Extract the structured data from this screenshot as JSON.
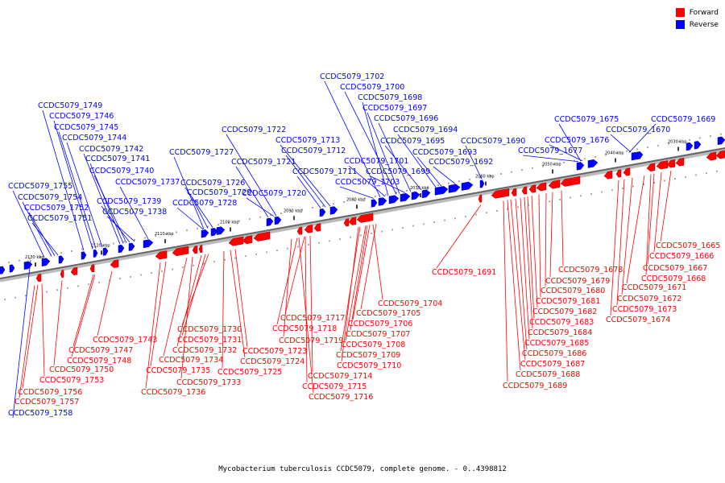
{
  "legend": {
    "forward": {
      "label": "Forward",
      "color": "#ff0000"
    },
    "reverse": {
      "label": "Reverse",
      "color": "#0000ff"
    }
  },
  "caption": "Mycobacterium tuberculosis CCDC5079, complete genome. - 0..4398812",
  "ticks": [
    "2030 kbp",
    "2040 kbp",
    "2050 kbp",
    "2060 kbp",
    "2070 kbp",
    "2080 kbp",
    "2090 kbp",
    "2100 kbp",
    "2110 kbp",
    "2120 kbp",
    "2130 kbp"
  ],
  "reverse_genes": [
    "CCDC5079_1669",
    "CCDC5079_1670",
    "CCDC5079_1675",
    "CCDC5079_1676",
    "CCDC5079_1677",
    "CCDC5079_1690",
    "CCDC5079_1692",
    "CCDC5079_1693",
    "CCDC5079_1694",
    "CCDC5079_1695",
    "CCDC5079_1696",
    "CCDC5079_1697",
    "CCDC5079_1698",
    "CCDC5079_1699",
    "CCDC5079_1700",
    "CCDC5079_1701",
    "CCDC5079_1702",
    "CCDC5079_1703",
    "CCDC5079_1711",
    "CCDC5079_1712",
    "CCDC5079_1713",
    "CCDC5079_1720",
    "CCDC5079_1721",
    "CCDC5079_1722",
    "CCDC5079_1726",
    "CCDC5079_1727",
    "CCDC5079_1728",
    "CCDC5079_1729",
    "CCDC5079_1737",
    "CCDC5079_1738",
    "CCDC5079_1739",
    "CCDC5079_1740",
    "CCDC5079_1741",
    "CCDC5079_1742",
    "CCDC5079_1744",
    "CCDC5079_1745",
    "CCDC5079_1746",
    "CCDC5079_1749",
    "CCDC5079_1751",
    "CCDC5079_1752",
    "CCDC5079_1754",
    "CCDC5079_1755",
    "CCDC5079_1758"
  ],
  "forward_genes": [
    "CCDC5079_1665",
    "CCDC5079_1666",
    "CCDC5079_1667",
    "CCDC5079_1668",
    "CCDC5079_1671",
    "CCDC5079_1672",
    "CCDC5079_1673",
    "CCDC5079_1674",
    "CCDC5079_1678",
    "CCDC5079_1679",
    "CCDC5079_1680",
    "CCDC5079_1681",
    "CCDC5079_1682",
    "CCDC5079_1683",
    "CCDC5079_1684",
    "CCDC5079_1685",
    "CCDC5079_1686",
    "CCDC5079_1687",
    "CCDC5079_1688",
    "CCDC5079_1689",
    "CCDC5079_1691",
    "CCDC5079_1704",
    "CCDC5079_1705",
    "CCDC5079_1706",
    "CCDC5079_1707",
    "CCDC5079_1708",
    "CCDC5079_1709",
    "CCDC5079_1710",
    "CCDC5079_1714",
    "CCDC5079_1715",
    "CCDC5079_1716",
    "CCDC5079_1717",
    "CCDC5079_1718",
    "CCDC5079_1719",
    "CCDC5079_1723",
    "CCDC5079_1724",
    "CCDC5079_1725",
    "CCDC5079_1730",
    "CCDC5079_1731",
    "CCDC5079_1732",
    "CCDC5079_1733",
    "CCDC5079_1734",
    "CCDC5079_1735",
    "CCDC5079_1736",
    "CCDC5079_1743",
    "CCDC5079_1747",
    "CCDC5079_1748",
    "CCDC5079_1750",
    "CCDC5079_1753",
    "CCDC5079_1756",
    "CCDC5079_1757"
  ]
}
